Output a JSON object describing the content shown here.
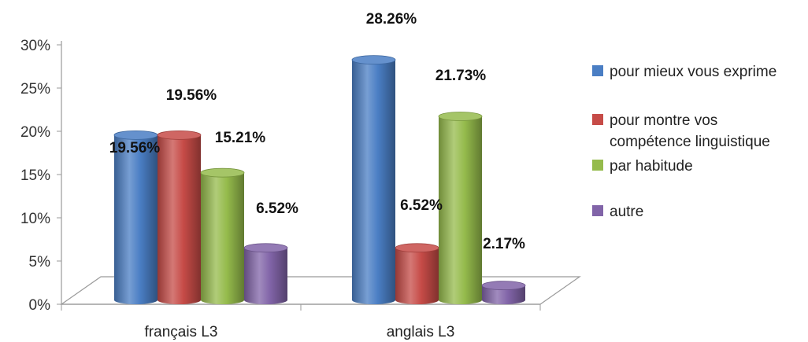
{
  "chart_data": {
    "type": "bar",
    "categories": [
      "français L3",
      "anglais L3"
    ],
    "series": [
      {
        "name": "pour mieux vous exprime",
        "values": [
          19.56,
          28.26
        ],
        "labels": [
          "19.56%",
          "28.26%"
        ],
        "color": "#4a7ec4"
      },
      {
        "name": "pour montre vos compétence linguistique",
        "values": [
          19.56,
          6.52
        ],
        "labels": [
          "19.56%",
          "6.52%"
        ],
        "color": "#c64b47"
      },
      {
        "name": "par habitude",
        "values": [
          15.21,
          21.73
        ],
        "labels": [
          "15.21%",
          "21.73%"
        ],
        "color": "#95bb4c"
      },
      {
        "name": "autre",
        "values": [
          6.52,
          2.17
        ],
        "labels": [
          "6.52%",
          "2.17%"
        ],
        "color": "#8164a8"
      }
    ],
    "ylim": [
      0,
      30
    ],
    "yticks": [
      "0%",
      "5%",
      "10%",
      "15%",
      "20%",
      "25%",
      "30%"
    ],
    "grid": false,
    "legend_position": "right",
    "style": "3d-cylinder",
    "legend_lines": [
      [
        "pour mieux vous exprime"
      ],
      [
        "pour montre vos",
        "compétence linguistique"
      ],
      [
        "par habitude"
      ],
      [
        "autre"
      ]
    ]
  }
}
